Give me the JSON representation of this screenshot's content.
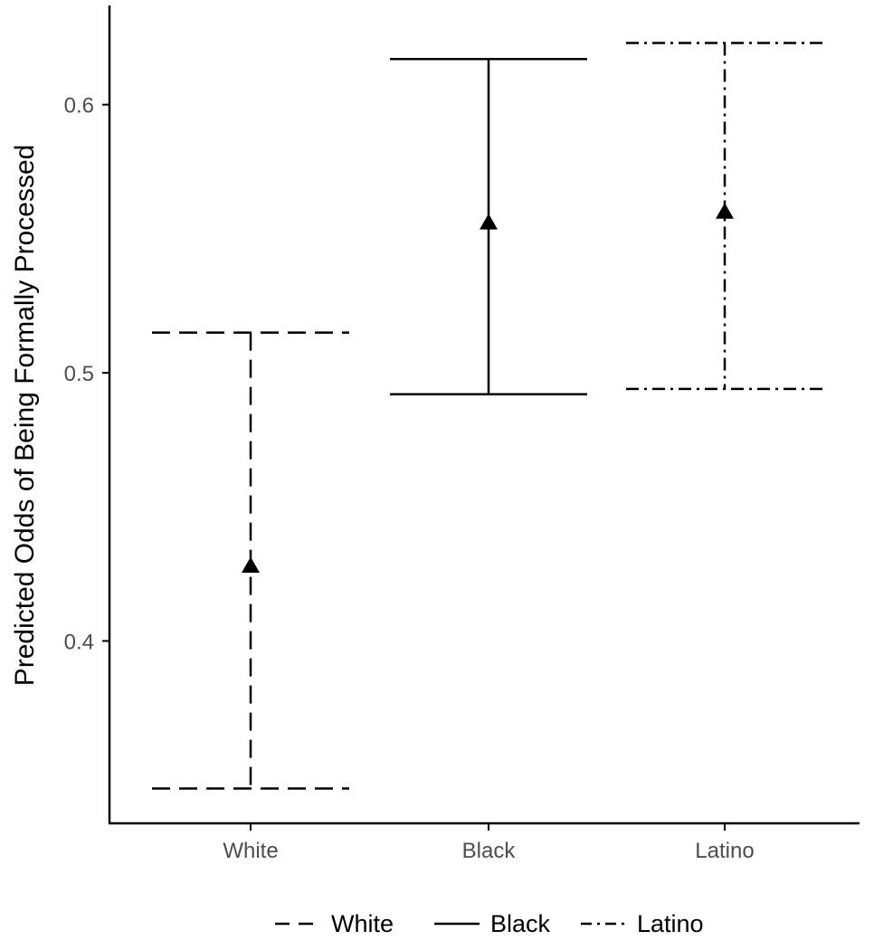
{
  "chart_data": {
    "type": "errorbar",
    "title": "",
    "xlabel": "",
    "ylabel": "Predicted Odds of Being Formally Processed",
    "categories": [
      "White",
      "Black",
      "Latino"
    ],
    "series": [
      {
        "name": "White",
        "category": "White",
        "estimate": 0.428,
        "lower": 0.345,
        "upper": 0.515,
        "linetype": "dashed"
      },
      {
        "name": "Black",
        "category": "Black",
        "estimate": 0.556,
        "lower": 0.492,
        "upper": 0.617,
        "linetype": "solid"
      },
      {
        "name": "Latino",
        "category": "Latino",
        "estimate": 0.56,
        "lower": 0.494,
        "upper": 0.623,
        "linetype": "dotdash"
      }
    ],
    "yticks": [
      0.4,
      0.5,
      0.6
    ],
    "ytick_labels": [
      "0.4",
      "0.5",
      "0.6"
    ],
    "ylim": [
      0.332,
      0.637
    ],
    "grid": false,
    "legend": {
      "position": "bottom",
      "entries": [
        "White",
        "Black",
        "Latino"
      ]
    },
    "colors": {
      "marks": "#000000",
      "axis": "#000000",
      "tick_label": "#4d4d4d"
    }
  }
}
